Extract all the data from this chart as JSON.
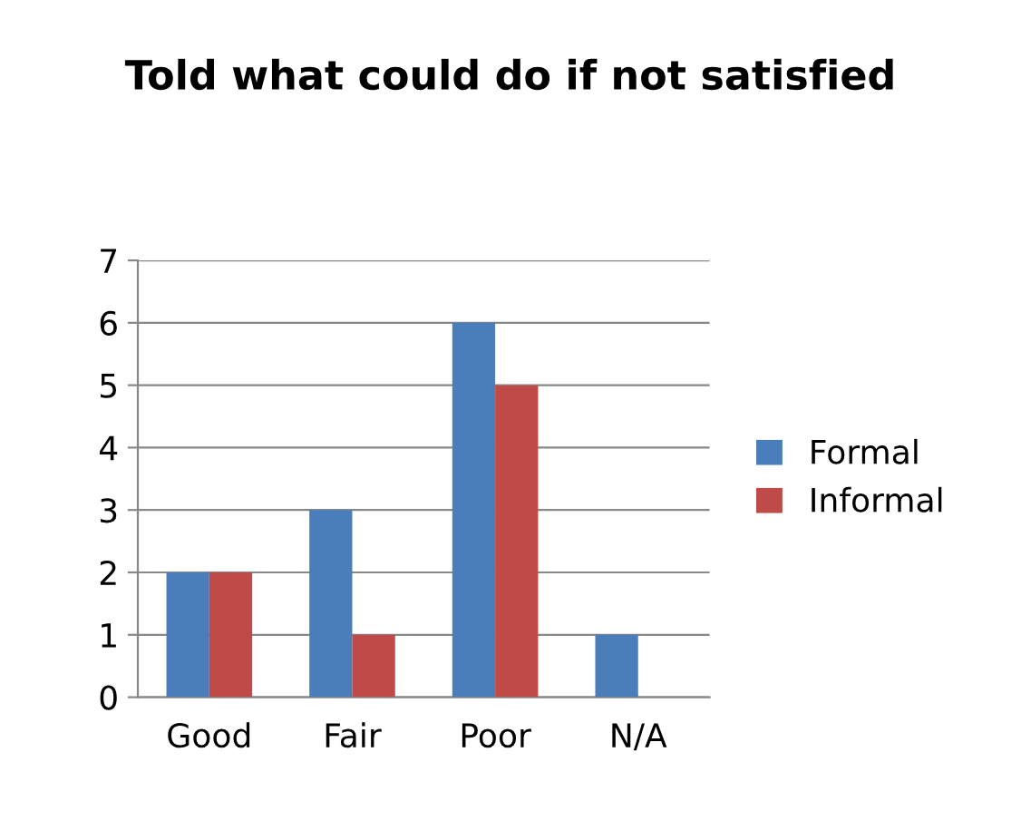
{
  "chart_data": {
    "type": "bar",
    "title": "Told what could do if not satisfied",
    "categories": [
      "Good",
      "Fair",
      "Poor",
      "N/A"
    ],
    "series": [
      {
        "name": "Formal",
        "color": "#4a7ebb",
        "values": [
          2,
          3,
          6,
          1
        ]
      },
      {
        "name": "Informal",
        "color": "#be4b48",
        "values": [
          2,
          1,
          5,
          0
        ]
      }
    ],
    "ylim": [
      0,
      7
    ],
    "yticks": [
      0,
      1,
      2,
      3,
      4,
      5,
      6,
      7
    ],
    "grid": "y",
    "legend": "right"
  }
}
